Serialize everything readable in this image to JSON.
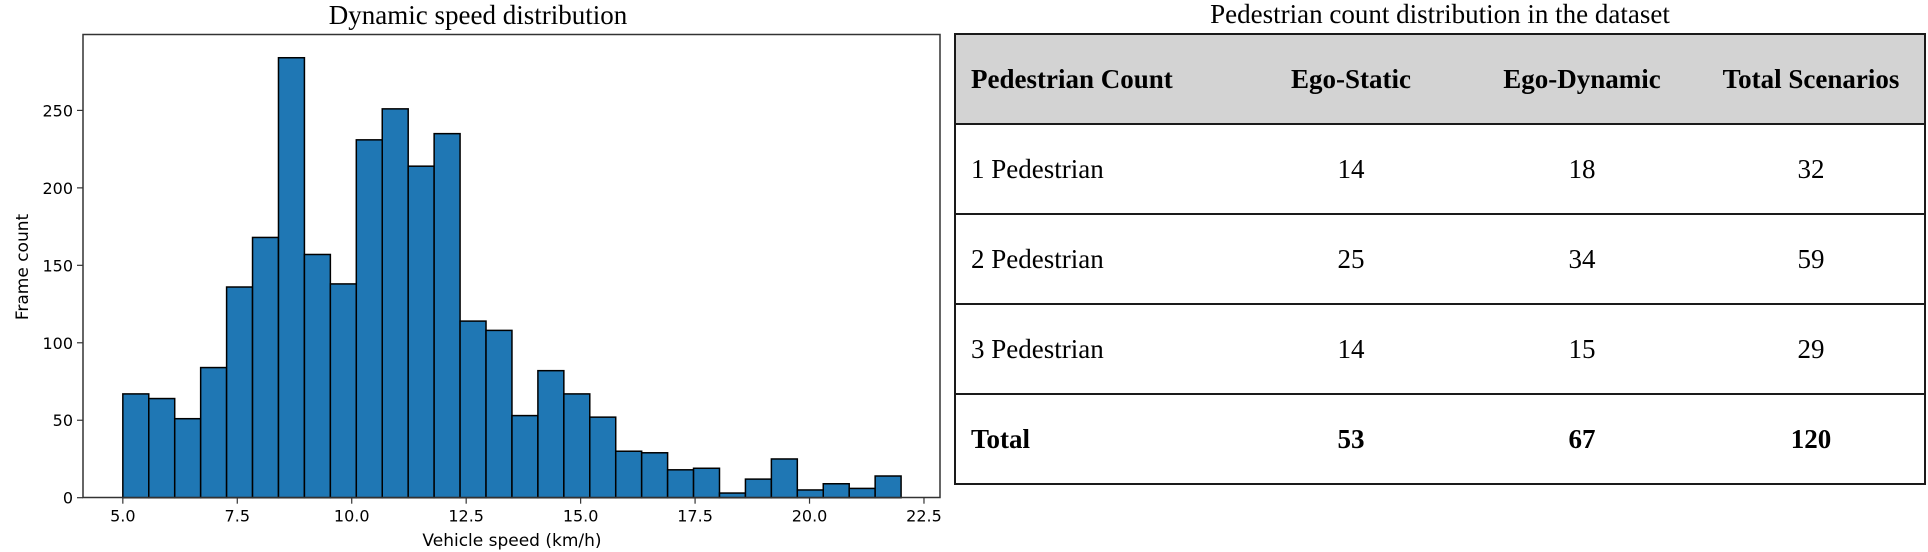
{
  "chart_data": [
    {
      "type": "bar",
      "subtype": "histogram",
      "title": "Dynamic speed distribution",
      "xlabel": "Vehicle speed (km/h)",
      "ylabel": "Frame count",
      "xlim": [
        4.13,
        22.85
      ],
      "ylim": [
        0,
        299
      ],
      "xticks": [
        5.0,
        7.5,
        10.0,
        12.5,
        15.0,
        17.5,
        20.0,
        22.5
      ],
      "xtick_labels": [
        "5.0",
        "7.5",
        "10.0",
        "12.5",
        "15.0",
        "17.5",
        "20.0",
        "22.5"
      ],
      "yticks": [
        0,
        50,
        100,
        150,
        200,
        250
      ],
      "ytick_labels": [
        "0",
        "50",
        "100",
        "150",
        "200",
        "250"
      ],
      "grid": false,
      "bar_color": "#1f77b4",
      "edge_color": "#000000",
      "bin_start": 5.0,
      "bin_end": 22.0,
      "bin_count": 30,
      "bin_width": 0.5667,
      "values": [
        67,
        64,
        51,
        84,
        136,
        168,
        284,
        157,
        138,
        231,
        251,
        214,
        235,
        114,
        108,
        53,
        82,
        67,
        52,
        30,
        29,
        18,
        19,
        3,
        12,
        25,
        5,
        9,
        6,
        14
      ]
    },
    {
      "type": "table",
      "title": "Pedestrian count distribution in the dataset",
      "columns": [
        "Pedestrian Count",
        "Ego-Static",
        "Ego-Dynamic",
        "Total Scenarios"
      ],
      "rows": [
        [
          "1 Pedestrian",
          "14",
          "18",
          "32"
        ],
        [
          "2 Pedestrian",
          "25",
          "34",
          "59"
        ],
        [
          "3 Pedestrian",
          "14",
          "15",
          "29"
        ],
        [
          "Total",
          "53",
          "67",
          "120"
        ]
      ],
      "header_bg": "#d3d3d3"
    }
  ],
  "histogram": {
    "title": "Dynamic speed distribution",
    "xlabel": "Vehicle speed (km/h)",
    "ylabel": "Frame count"
  },
  "table": {
    "title": "Pedestrian count distribution in the dataset",
    "header": {
      "c0": "Pedestrian Count",
      "c1": "Ego-Static",
      "c2": "Ego-Dynamic",
      "c3": "Total Scenarios"
    },
    "rows": [
      {
        "c0": "1 Pedestrian",
        "c1": "14",
        "c2": "18",
        "c3": "32"
      },
      {
        "c0": "2 Pedestrian",
        "c1": "25",
        "c2": "34",
        "c3": "59"
      },
      {
        "c0": "3 Pedestrian",
        "c1": "14",
        "c2": "15",
        "c3": "29"
      },
      {
        "c0": "Total",
        "c1": "53",
        "c2": "67",
        "c3": "120"
      }
    ]
  }
}
